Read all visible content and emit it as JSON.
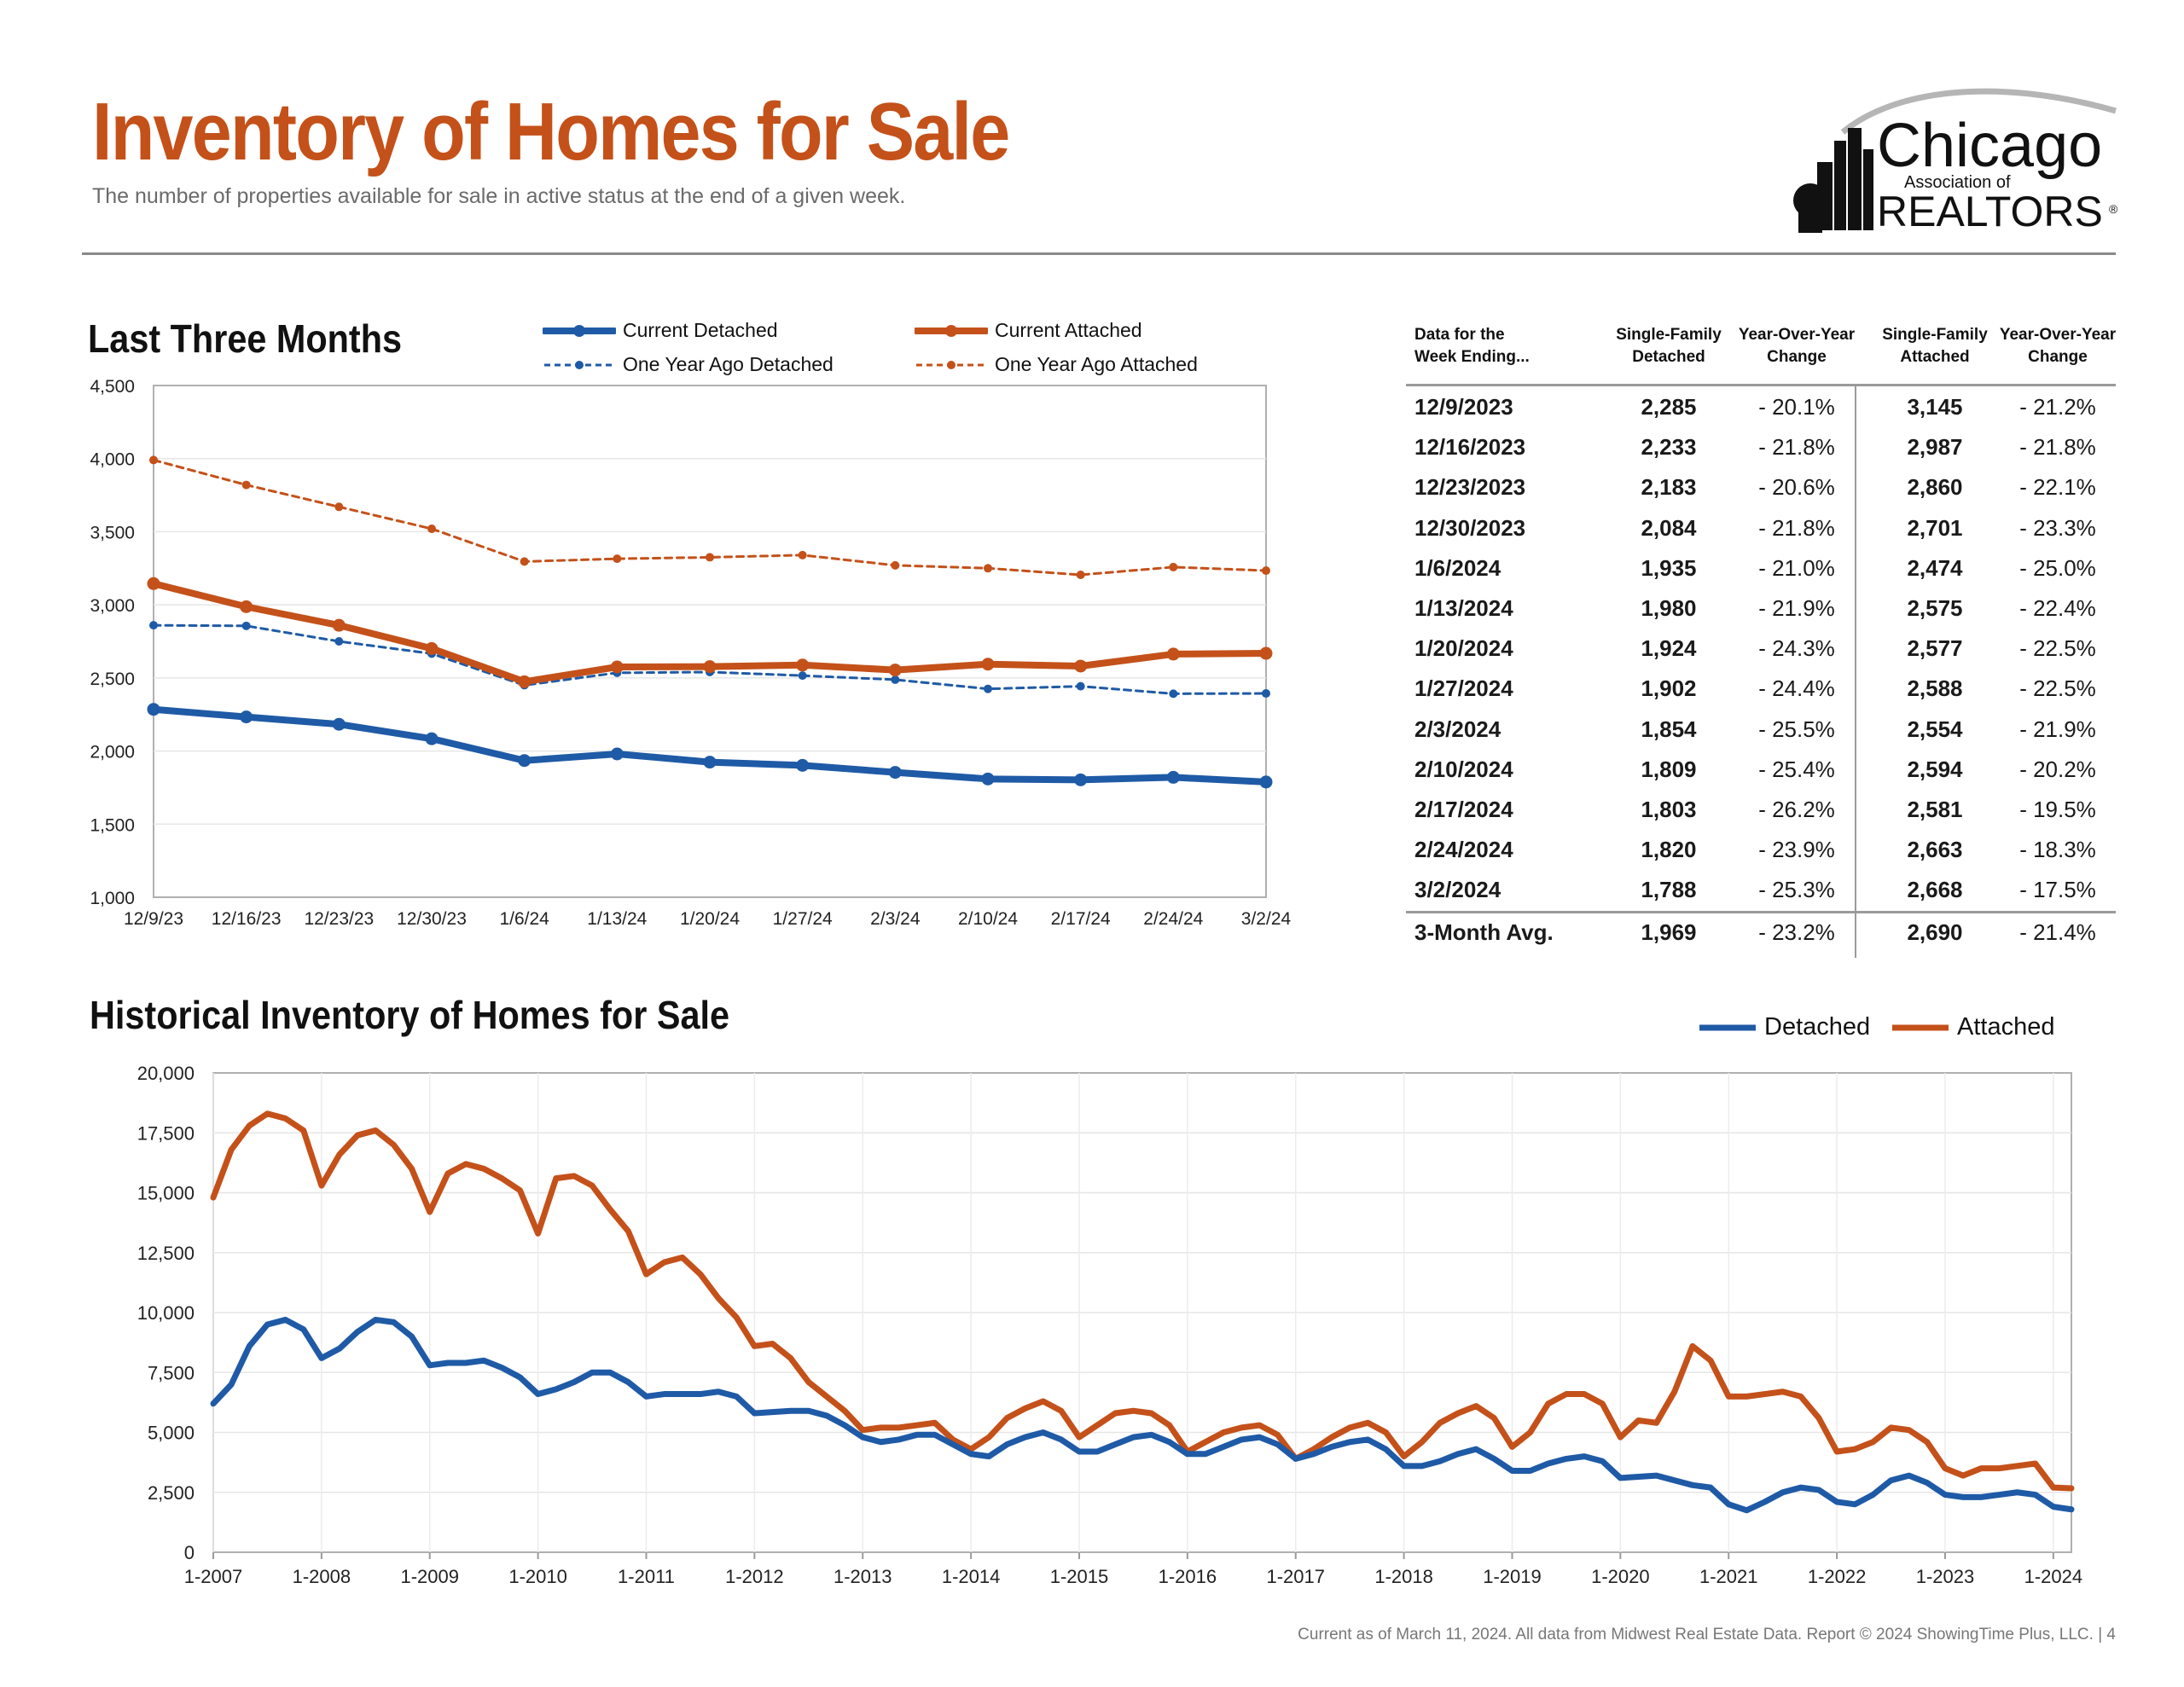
{
  "header": {
    "title": "Inventory of Homes for Sale",
    "subtitle": "The number of properties available for sale in active status at the end of a given week."
  },
  "logo": {
    "line1": "Chicago",
    "line2": "Association of",
    "line3": "REALTORS",
    "reg_mark": "®"
  },
  "colors": {
    "detached": "#1f5aa6",
    "attached": "#c4511a",
    "title": "#c4511a",
    "grid": "#e2e2e2"
  },
  "short_term": {
    "title": "Last Three Months",
    "legend": {
      "current_detached": "Current Detached",
      "current_attached": "Current Attached",
      "year_ago_detached": "One Year Ago Detached",
      "year_ago_attached": "One Year Ago Attached"
    }
  },
  "table": {
    "headers": {
      "week": "Data for the\nWeek Ending...",
      "sf_detached": "Single-Family\nDetached",
      "yoy_detached": "Year-Over-Year\nChange",
      "sf_attached": "Single-Family\nAttached",
      "yoy_attached": "Year-Over-Year\nChange"
    },
    "rows": [
      {
        "week": "12/9/2023",
        "detached": "2,285",
        "det_change": "- 20.1%",
        "attached": "3,145",
        "att_change": "- 21.2%"
      },
      {
        "week": "12/16/2023",
        "detached": "2,233",
        "det_change": "- 21.8%",
        "attached": "2,987",
        "att_change": "- 21.8%"
      },
      {
        "week": "12/23/2023",
        "detached": "2,183",
        "det_change": "- 20.6%",
        "attached": "2,860",
        "att_change": "- 22.1%"
      },
      {
        "week": "12/30/2023",
        "detached": "2,084",
        "det_change": "- 21.8%",
        "attached": "2,701",
        "att_change": "- 23.3%"
      },
      {
        "week": "1/6/2024",
        "detached": "1,935",
        "det_change": "- 21.0%",
        "attached": "2,474",
        "att_change": "- 25.0%"
      },
      {
        "week": "1/13/2024",
        "detached": "1,980",
        "det_change": "- 21.9%",
        "attached": "2,575",
        "att_change": "- 22.4%"
      },
      {
        "week": "1/20/2024",
        "detached": "1,924",
        "det_change": "- 24.3%",
        "attached": "2,577",
        "att_change": "- 22.5%"
      },
      {
        "week": "1/27/2024",
        "detached": "1,902",
        "det_change": "- 24.4%",
        "attached": "2,588",
        "att_change": "- 22.5%"
      },
      {
        "week": "2/3/2024",
        "detached": "1,854",
        "det_change": "- 25.5%",
        "attached": "2,554",
        "att_change": "- 21.9%"
      },
      {
        "week": "2/10/2024",
        "detached": "1,809",
        "det_change": "- 25.4%",
        "attached": "2,594",
        "att_change": "- 20.2%"
      },
      {
        "week": "2/17/2024",
        "detached": "1,803",
        "det_change": "- 26.2%",
        "attached": "2,581",
        "att_change": "- 19.5%"
      },
      {
        "week": "2/24/2024",
        "detached": "1,820",
        "det_change": "- 23.9%",
        "attached": "2,663",
        "att_change": "- 18.3%"
      },
      {
        "week": "3/2/2024",
        "detached": "1,788",
        "det_change": "- 25.3%",
        "attached": "2,668",
        "att_change": "- 17.5%"
      }
    ],
    "avg": {
      "week": "3-Month Avg.",
      "detached": "1,969",
      "det_change": "- 23.2%",
      "attached": "2,690",
      "att_change": "- 21.4%"
    }
  },
  "historical": {
    "title": "Historical Inventory of Homes for Sale",
    "legend": {
      "detached": "Detached",
      "attached": "Attached"
    }
  },
  "footer": "Current as of March 11, 2024.  All data from Midwest Real Estate Data. Report © 2024 ShowingTime Plus, LLC.  |  4",
  "chart_data": [
    {
      "type": "line",
      "title": "Last Three Months",
      "categories": [
        "12/9/23",
        "12/16/23",
        "12/23/23",
        "12/30/23",
        "1/6/24",
        "1/13/24",
        "1/20/24",
        "1/27/24",
        "2/3/24",
        "2/10/24",
        "2/17/24",
        "2/24/24",
        "3/2/24"
      ],
      "series": [
        {
          "name": "Current Detached",
          "values": [
            2285,
            2233,
            2183,
            2084,
            1935,
            1980,
            1924,
            1902,
            1854,
            1809,
            1803,
            1820,
            1788
          ]
        },
        {
          "name": "Current Attached",
          "values": [
            3145,
            2987,
            2860,
            2701,
            2474,
            2575,
            2577,
            2588,
            2554,
            2594,
            2581,
            2663,
            2668
          ]
        },
        {
          "name": "One Year Ago Detached",
          "values": [
            2860,
            2856,
            2750,
            2666,
            2450,
            2535,
            2540,
            2516,
            2488,
            2425,
            2443,
            2392,
            2394
          ]
        },
        {
          "name": "One Year Ago Attached",
          "values": [
            3990,
            3820,
            3670,
            3520,
            3296,
            3315,
            3325,
            3340,
            3270,
            3250,
            3205,
            3258,
            3234
          ]
        }
      ],
      "y_ticks": [
        "1,000",
        "1,500",
        "2,000",
        "2,500",
        "3,000",
        "3,500",
        "4,000",
        "4,500"
      ],
      "ylim": [
        1000,
        4500
      ],
      "grid": true,
      "legend_position": "top"
    },
    {
      "type": "line",
      "title": "Historical Inventory of Homes for Sale",
      "x_labels": [
        "1-2007",
        "1-2008",
        "1-2009",
        "1-2010",
        "1-2011",
        "1-2012",
        "1-2013",
        "1-2014",
        "1-2015",
        "1-2016",
        "1-2017",
        "1-2018",
        "1-2019",
        "1-2020",
        "1-2021",
        "1-2022",
        "1-2023",
        "1-2024"
      ],
      "xlim": [
        "2007-01",
        "2024-03"
      ],
      "y_ticks": [
        "0",
        "2,500",
        "5,000",
        "7,500",
        "10,000",
        "12,500",
        "15,000",
        "17,500",
        "20,000"
      ],
      "ylim": [
        0,
        20000
      ],
      "grid": true,
      "legend_position": "top-right",
      "x": [
        "2007-01",
        "2007-03",
        "2007-05",
        "2007-07",
        "2007-09",
        "2007-11",
        "2008-01",
        "2008-03",
        "2008-05",
        "2008-07",
        "2008-09",
        "2008-11",
        "2009-01",
        "2009-03",
        "2009-05",
        "2009-07",
        "2009-09",
        "2009-11",
        "2010-01",
        "2010-03",
        "2010-05",
        "2010-07",
        "2010-09",
        "2010-11",
        "2011-01",
        "2011-03",
        "2011-05",
        "2011-07",
        "2011-09",
        "2011-11",
        "2012-01",
        "2012-03",
        "2012-05",
        "2012-07",
        "2012-09",
        "2012-11",
        "2013-01",
        "2013-03",
        "2013-05",
        "2013-07",
        "2013-09",
        "2013-11",
        "2014-01",
        "2014-03",
        "2014-05",
        "2014-07",
        "2014-09",
        "2014-11",
        "2015-01",
        "2015-03",
        "2015-05",
        "2015-07",
        "2015-09",
        "2015-11",
        "2016-01",
        "2016-03",
        "2016-05",
        "2016-07",
        "2016-09",
        "2016-11",
        "2017-01",
        "2017-03",
        "2017-05",
        "2017-07",
        "2017-09",
        "2017-11",
        "2018-01",
        "2018-03",
        "2018-05",
        "2018-07",
        "2018-09",
        "2018-11",
        "2019-01",
        "2019-03",
        "2019-05",
        "2019-07",
        "2019-09",
        "2019-11",
        "2020-01",
        "2020-03",
        "2020-05",
        "2020-07",
        "2020-09",
        "2020-11",
        "2021-01",
        "2021-03",
        "2021-05",
        "2021-07",
        "2021-09",
        "2021-11",
        "2022-01",
        "2022-03",
        "2022-05",
        "2022-07",
        "2022-09",
        "2022-11",
        "2023-01",
        "2023-03",
        "2023-05",
        "2023-07",
        "2023-09",
        "2023-11",
        "2024-01",
        "2024-03"
      ],
      "series": [
        {
          "name": "Detached",
          "values": [
            6200,
            7000,
            8600,
            9500,
            9700,
            9300,
            8100,
            8500,
            9200,
            9700,
            9600,
            9000,
            7800,
            7900,
            7900,
            8000,
            7700,
            7300,
            6600,
            6800,
            7100,
            7500,
            7500,
            7100,
            6500,
            6600,
            6600,
            6600,
            6700,
            6500,
            5800,
            5850,
            5900,
            5900,
            5700,
            5300,
            4800,
            4600,
            4700,
            4900,
            4900,
            4500,
            4100,
            4000,
            4500,
            4800,
            5000,
            4700,
            4200,
            4200,
            4500,
            4800,
            4900,
            4600,
            4100,
            4100,
            4400,
            4700,
            4800,
            4500,
            3900,
            4100,
            4400,
            4600,
            4700,
            4300,
            3600,
            3600,
            3800,
            4100,
            4300,
            3900,
            3400,
            3400,
            3700,
            3900,
            4000,
            3800,
            3100,
            3150,
            3200,
            3000,
            2800,
            2700,
            2000,
            1750,
            2100,
            2500,
            2700,
            2600,
            2100,
            2000,
            2400,
            3000,
            3200,
            2900,
            2400,
            2300,
            2300,
            2400,
            2500,
            2400,
            1900,
            1788
          ]
        },
        {
          "name": "Attached",
          "values": [
            14800,
            16800,
            17800,
            18300,
            18100,
            17600,
            15300,
            16600,
            17400,
            17600,
            17000,
            16000,
            14200,
            15800,
            16200,
            16000,
            15600,
            15100,
            13300,
            15600,
            15700,
            15300,
            14300,
            13400,
            11600,
            12100,
            12300,
            11600,
            10600,
            9800,
            8600,
            8700,
            8100,
            7100,
            6500,
            5900,
            5100,
            5200,
            5200,
            5300,
            5400,
            4700,
            4300,
            4800,
            5600,
            6000,
            6300,
            5900,
            4800,
            5300,
            5800,
            5900,
            5800,
            5300,
            4200,
            4600,
            5000,
            5200,
            5300,
            4900,
            3900,
            4300,
            4800,
            5200,
            5400,
            5000,
            4000,
            4600,
            5400,
            5800,
            6100,
            5600,
            4400,
            5000,
            6200,
            6600,
            6600,
            6200,
            4800,
            5500,
            5400,
            6700,
            8600,
            8000,
            6500,
            6500,
            6600,
            6700,
            6500,
            5600,
            4200,
            4300,
            4600,
            5200,
            5100,
            4600,
            3500,
            3200,
            3500,
            3500,
            3600,
            3700,
            2700,
            2668
          ]
        }
      ]
    }
  ]
}
